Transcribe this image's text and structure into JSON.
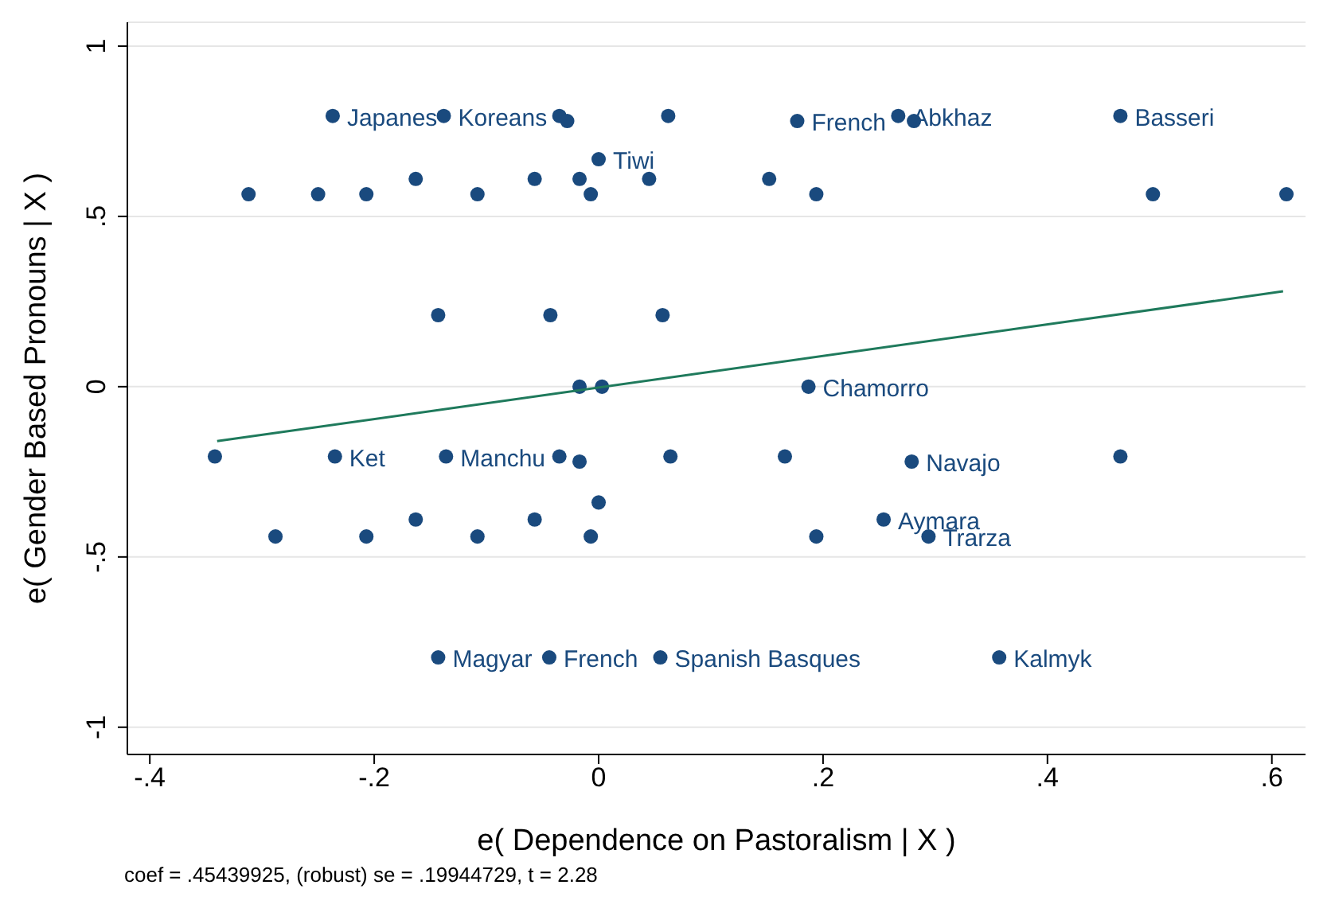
{
  "chart_data": {
    "type": "scatter",
    "xlabel": "e( Dependence on Pastoralism | X )",
    "ylabel": "e( Gender Based Pronouns | X )",
    "xlim": [
      -0.42,
      0.63
    ],
    "ylim": [
      -1.08,
      1.07
    ],
    "xticks": [
      {
        "value": -0.4,
        "label": "-.4"
      },
      {
        "value": -0.2,
        "label": "-.2"
      },
      0,
      {
        "value": 0.2,
        "label": ".2"
      },
      {
        "value": 0.4,
        "label": ".4"
      },
      {
        "value": 0.6,
        "label": ".6"
      }
    ],
    "yticks": [
      -1,
      {
        "value": -0.5,
        "label": "-.5"
      },
      0,
      {
        "value": 0.5,
        "label": ".5"
      },
      1
    ],
    "grid": "y",
    "legend": false,
    "series": [
      {
        "marker": "circle",
        "color": "#1a4a7e",
        "x": [
          -0.237,
          -0.138,
          -0.035,
          -0.028,
          0.062,
          0.177,
          0.267,
          0.281,
          0.465,
          0.0,
          -0.163,
          -0.057,
          -0.017,
          0.045,
          0.152,
          -0.312,
          -0.25,
          -0.207,
          -0.108,
          -0.007,
          0.194,
          0.494,
          0.613,
          -0.143,
          -0.043,
          0.057,
          -0.017,
          0.003,
          0.187,
          -0.342,
          -0.235,
          -0.136,
          -0.035,
          -0.017,
          0.064,
          0.166,
          0.279,
          0.465,
          0.0,
          -0.163,
          -0.057,
          0.254,
          -0.288,
          -0.207,
          -0.108,
          -0.007,
          0.194,
          0.294,
          -0.143,
          -0.044,
          0.055,
          0.357
        ],
        "values": [
          0.795,
          0.795,
          0.795,
          0.78,
          0.795,
          0.78,
          0.795,
          0.78,
          0.795,
          0.668,
          0.61,
          0.61,
          0.61,
          0.61,
          0.61,
          0.565,
          0.565,
          0.565,
          0.565,
          0.565,
          0.565,
          0.565,
          0.565,
          0.21,
          0.21,
          0.21,
          0.0,
          0.0,
          0.0,
          -0.205,
          -0.205,
          -0.205,
          -0.205,
          -0.22,
          -0.205,
          -0.205,
          -0.22,
          -0.205,
          -0.34,
          -0.39,
          -0.39,
          -0.39,
          -0.44,
          -0.44,
          -0.44,
          -0.44,
          -0.44,
          -0.44,
          -0.795,
          -0.795,
          -0.795,
          -0.795
        ]
      },
      {
        "type": "line",
        "marker": "none",
        "color": "#1f7a5c",
        "x": [
          -0.34,
          0.61
        ],
        "values": [
          -0.16,
          0.28
        ]
      }
    ],
    "annotations": [
      {
        "text": "Japanes",
        "x": -0.237,
        "y": 0.795
      },
      {
        "text": "Koreans",
        "x": -0.138,
        "y": 0.795
      },
      {
        "text": "French",
        "x": 0.177,
        "y": 0.78
      },
      {
        "text": "Abkhaz",
        "x": 0.267,
        "y": 0.795
      },
      {
        "text": "Basseri",
        "x": 0.465,
        "y": 0.795
      },
      {
        "text": "Tiwi",
        "x": 0.0,
        "y": 0.668
      },
      {
        "text": "Chamorro",
        "x": 0.187,
        "y": 0.0
      },
      {
        "text": "Ket",
        "x": -0.235,
        "y": -0.205
      },
      {
        "text": "Manchu",
        "x": -0.136,
        "y": -0.205
      },
      {
        "text": "Navajo",
        "x": 0.279,
        "y": -0.22
      },
      {
        "text": "Aymara",
        "x": 0.254,
        "y": -0.39
      },
      {
        "text": "Trarza",
        "x": 0.294,
        "y": -0.44
      },
      {
        "text": "Magyar",
        "x": -0.143,
        "y": -0.795
      },
      {
        "text": "French",
        "x": -0.044,
        "y": -0.795
      },
      {
        "text": "Spanish Basques",
        "x": 0.055,
        "y": -0.795
      },
      {
        "text": "Kalmyk",
        "x": 0.357,
        "y": -0.795
      },
      "coef = .45439925, (robust) se = .19944729, t = 2.28"
    ]
  }
}
